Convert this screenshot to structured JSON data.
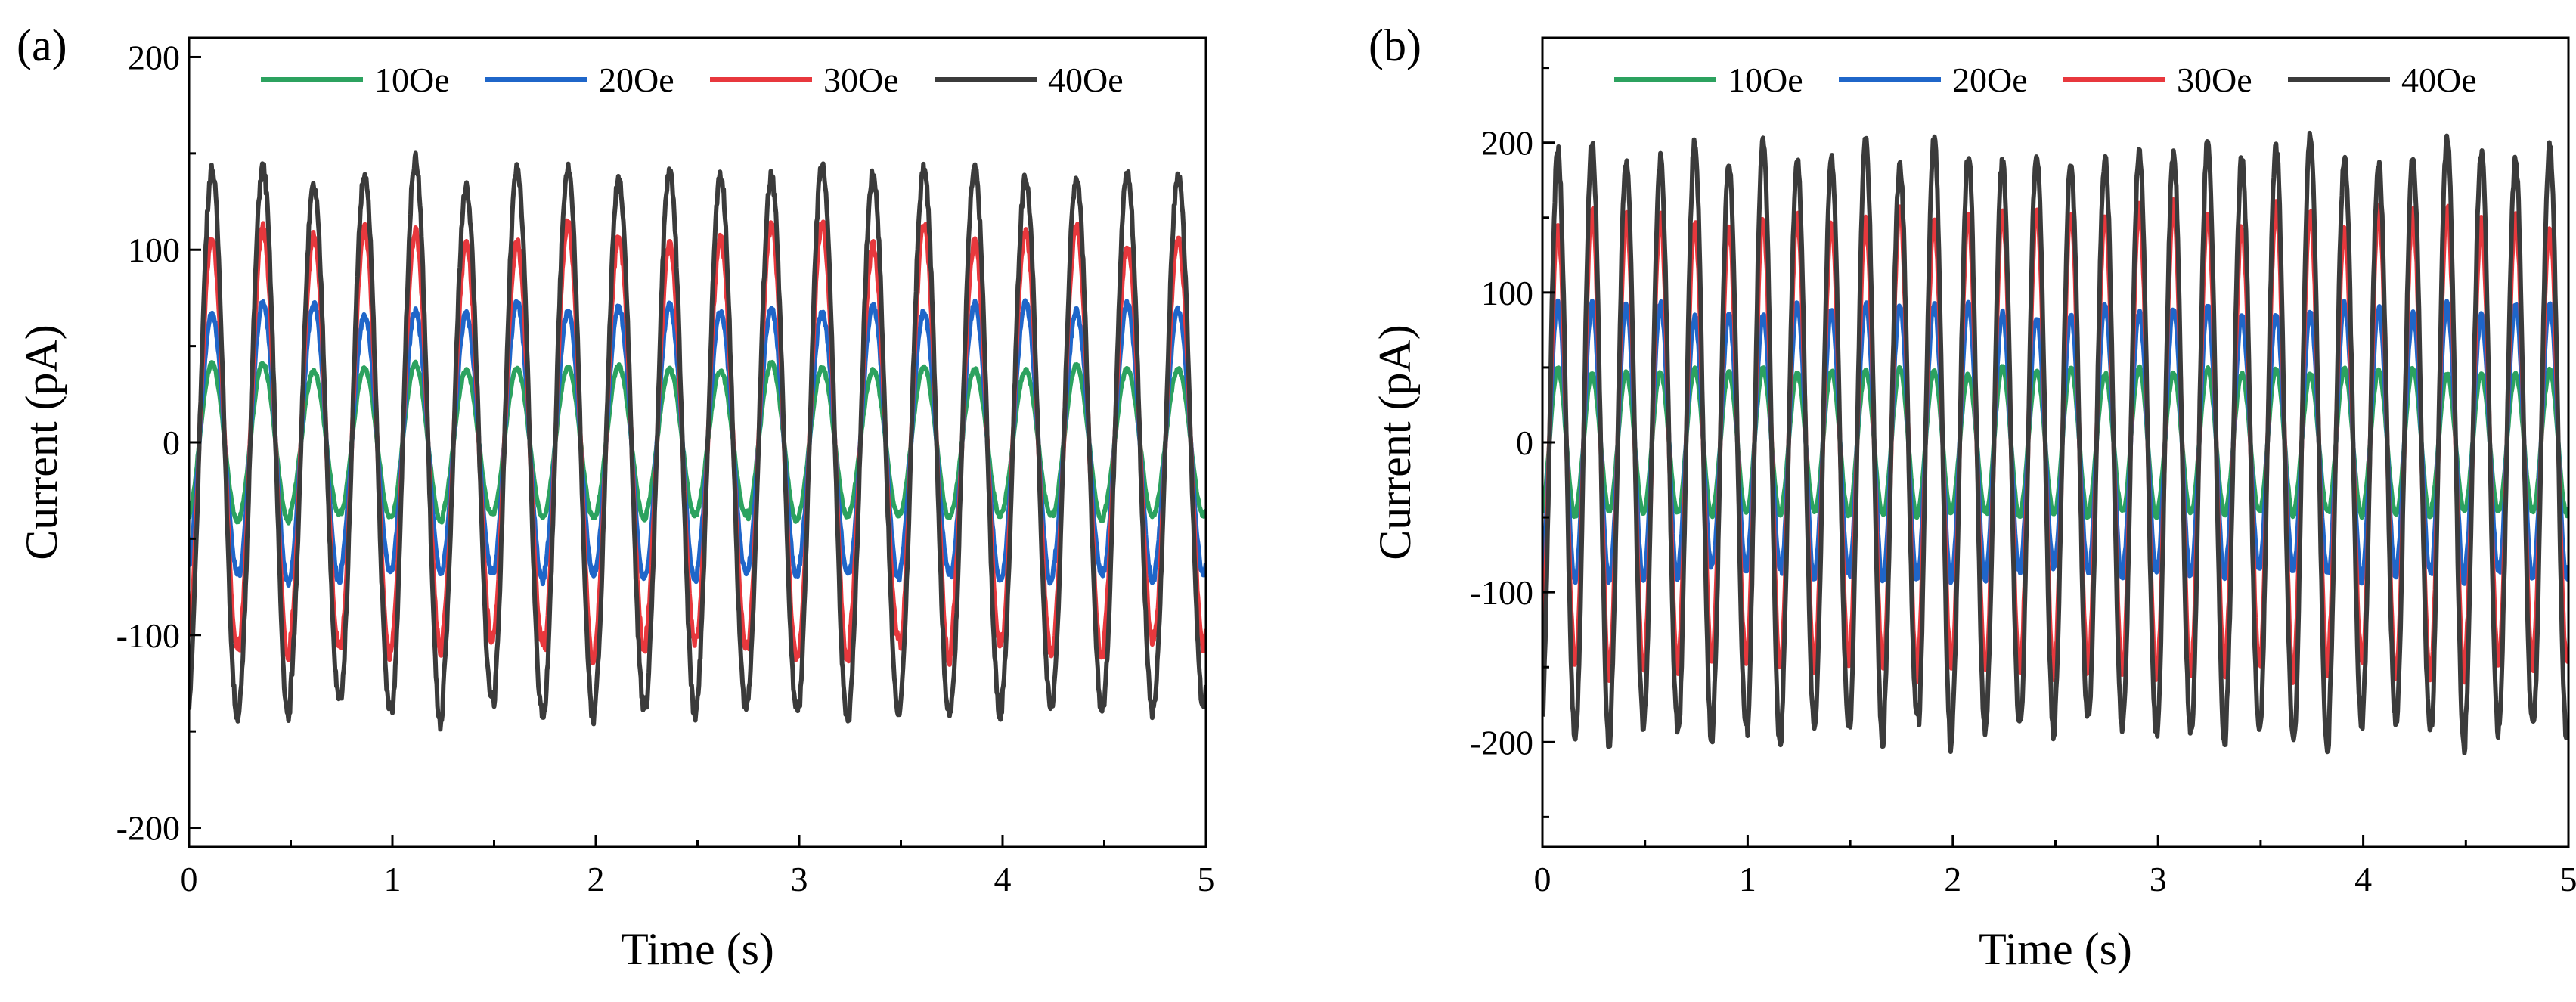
{
  "chart_data": [
    {
      "panel_label": "(a)",
      "type": "line",
      "xlabel": "Time (s)",
      "ylabel": "Current (pA)",
      "xlim": [
        0,
        5
      ],
      "ylim": [
        -210,
        210
      ],
      "xticks": [
        0,
        1,
        2,
        3,
        4,
        5
      ],
      "yticks": [
        -200,
        -100,
        0,
        100,
        200
      ],
      "x_minor_step": 0.5,
      "y_minor_step": 50,
      "legend_position": "top",
      "signal_frequency_hz": 4,
      "series": [
        {
          "name": "10Oe",
          "color": "#2ca25f",
          "amplitude": 39
        },
        {
          "name": "20Oe",
          "color": "#1f66c9",
          "amplitude": 70
        },
        {
          "name": "30Oe",
          "color": "#e8383d",
          "amplitude": 108
        },
        {
          "name": "40Oe",
          "color": "#3b3b3b",
          "amplitude": 140
        }
      ]
    },
    {
      "panel_label": "(b)",
      "type": "line",
      "xlabel": "Time (s)",
      "ylabel": "Current (pA)",
      "xlim": [
        0,
        5
      ],
      "ylim": [
        -270,
        270
      ],
      "xticks": [
        0,
        1,
        2,
        3,
        4,
        5
      ],
      "yticks": [
        -200,
        -100,
        0,
        100,
        200
      ],
      "x_minor_step": 0.5,
      "y_minor_step": 50,
      "legend_position": "top",
      "signal_frequency_hz": 6,
      "series": [
        {
          "name": "10Oe",
          "color": "#2ca25f",
          "amplitude": 48
        },
        {
          "name": "20Oe",
          "color": "#1f66c9",
          "amplitude": 88
        },
        {
          "name": "30Oe",
          "color": "#e8383d",
          "amplitude": 150
        },
        {
          "name": "40Oe",
          "color": "#3b3b3b",
          "amplitude": 195
        }
      ]
    }
  ]
}
